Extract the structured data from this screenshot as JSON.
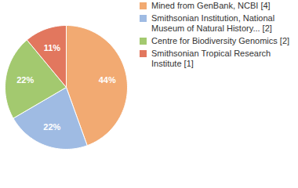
{
  "chart_data": {
    "type": "pie",
    "categories": [
      "Mined from GenBank, NCBI [4]",
      "Smithsonian Institution, National Museum of Natural History... [2]",
      "Centre for Biodiversity Genomics [2]",
      "Smithsonian Tropical Research Institute [1]"
    ],
    "values": [
      44,
      22,
      22,
      11
    ],
    "value_labels": [
      "44%",
      "22%",
      "22%",
      "11%"
    ],
    "colors": [
      "#f2aa72",
      "#9fbbe3",
      "#a3c96f",
      "#e2775e"
    ],
    "data_labels": true,
    "legend": "top-right"
  }
}
